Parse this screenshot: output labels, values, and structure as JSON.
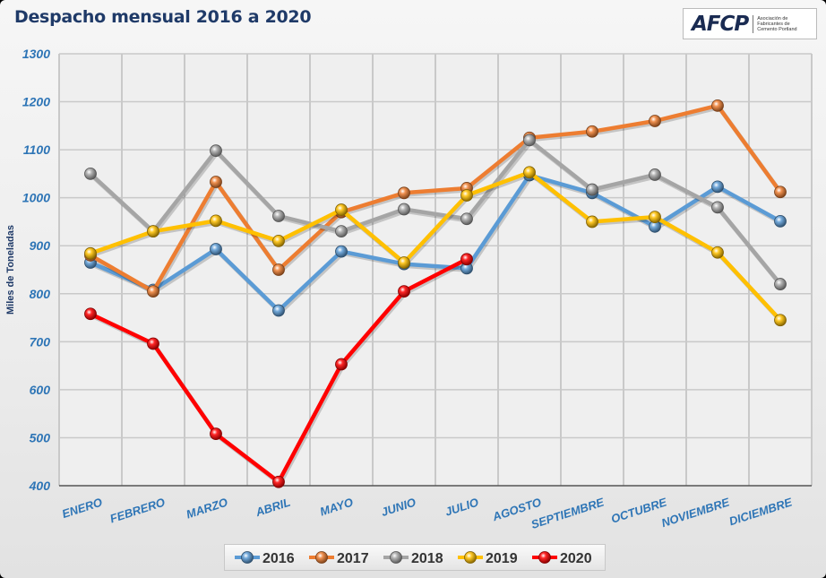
{
  "title": "Despacho mensual 2016 a 2020",
  "logo": {
    "mark": "AFCP",
    "text": "Asociación de Fabricantes de Cemento Portland"
  },
  "chart_data": {
    "type": "line",
    "title": "Despacho mensual 2016 a 2020",
    "xlabel": "",
    "ylabel": "Miles de Toneladas",
    "ylim": [
      400,
      1300
    ],
    "yticks": [
      400,
      500,
      600,
      700,
      800,
      900,
      1000,
      1100,
      1200,
      1300
    ],
    "grid": true,
    "legend_position": "bottom",
    "categories": [
      "ENERO",
      "FEBRERO",
      "MARZO",
      "ABRIL",
      "MAYO",
      "JUNIO",
      "JULIO",
      "AGOSTO",
      "SEPTIEMBRE",
      "OCTUBRE",
      "NOVIEMBRE",
      "DICIEMBRE"
    ],
    "series": [
      {
        "name": "2016",
        "color": "#5b9bd5",
        "values": [
          865,
          808,
          893,
          765,
          888,
          862,
          853,
          1047,
          1010,
          940,
          1023,
          951
        ]
      },
      {
        "name": "2017",
        "color": "#ed7d31",
        "values": [
          880,
          805,
          1033,
          850,
          970,
          1010,
          1020,
          1125,
          1138,
          1160,
          1192,
          1012
        ]
      },
      {
        "name": "2018",
        "color": "#a5a5a5",
        "values": [
          1050,
          930,
          1098,
          962,
          930,
          976,
          956,
          1120,
          1017,
          1048,
          980,
          820
        ]
      },
      {
        "name": "2019",
        "color": "#ffc000",
        "values": [
          884,
          930,
          952,
          910,
          975,
          865,
          1005,
          1053,
          950,
          960,
          886,
          745
        ]
      },
      {
        "name": "2020",
        "color": "#ff0000",
        "values": [
          758,
          696,
          508,
          408,
          653,
          805,
          872,
          null,
          null,
          null,
          null,
          null
        ]
      }
    ]
  }
}
